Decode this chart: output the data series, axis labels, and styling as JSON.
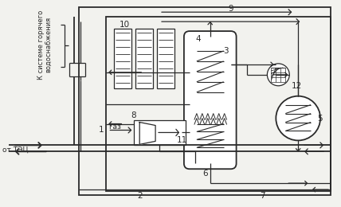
{
  "bg_color": "#f2f2ee",
  "line_color": "#2a2a2a",
  "labels": {
    "hot_water": "К системе горячего\nводоснабжения",
    "from_tec": "от ТЭЦ",
    "gas": "Газ",
    "nums": [
      "1",
      "2",
      "3",
      "4",
      "5",
      "6",
      "7",
      "8",
      "9",
      "10",
      "11",
      "12"
    ]
  },
  "figsize": [
    4.28,
    2.6
  ],
  "dpi": 100
}
